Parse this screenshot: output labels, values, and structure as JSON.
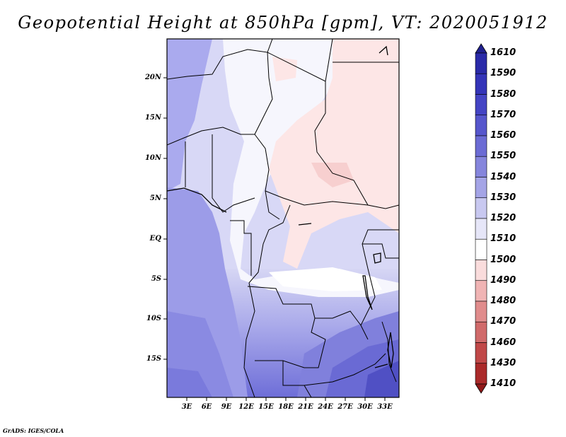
{
  "title": "Geopotential Height at 850hPa [gpm], VT: 2020051912",
  "credit": "GrADS: IGES/COLA",
  "map": {
    "lat_labels": [
      "20N",
      "15N",
      "10N",
      "5N",
      "EQ",
      "5S",
      "10S",
      "15S"
    ],
    "lon_labels": [
      "3E",
      "6E",
      "9E",
      "12E",
      "15E",
      "18E",
      "21E",
      "24E",
      "27E",
      "30E",
      "33E"
    ]
  },
  "colorbar": {
    "levels": [
      "1610",
      "1590",
      "1580",
      "1570",
      "1560",
      "1550",
      "1540",
      "1530",
      "1520",
      "1510",
      "1500",
      "1490",
      "1480",
      "1470",
      "1460",
      "1430",
      "1410"
    ],
    "colors": [
      "#20208f",
      "#2a2aa8",
      "#3434b8",
      "#4444c4",
      "#5656cc",
      "#6b6bd4",
      "#8585dc",
      "#a4a4e6",
      "#c8c8f0",
      "#e6e6f8",
      "#ffffff",
      "#fadcdc",
      "#f0b4b4",
      "#e08c8c",
      "#d06a6a",
      "#c04848",
      "#aa2a2a",
      "#901818"
    ]
  }
}
